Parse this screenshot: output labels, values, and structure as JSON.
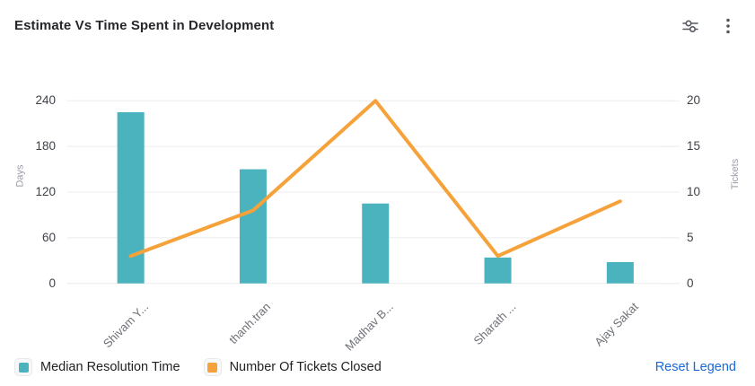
{
  "header": {
    "title": "Estimate Vs Time Spent in Development"
  },
  "chart_data": {
    "type": "combo",
    "categories": [
      "Shivam Y...",
      "thanh.tran",
      "Madhav B...",
      "Sharath ...",
      "Ajay Sakat"
    ],
    "series": [
      {
        "name": "Median Resolution Time",
        "type": "bar",
        "axis": "left",
        "color": "#4BB3BD",
        "values": [
          225,
          150,
          105,
          34,
          28
        ]
      },
      {
        "name": "Number Of Tickets Closed",
        "type": "line",
        "axis": "right",
        "color": "#F6A23B",
        "values": [
          3,
          8,
          20,
          3,
          9
        ]
      }
    ],
    "left_axis": {
      "label": "Days",
      "ticks": [
        0,
        60,
        120,
        180,
        240
      ],
      "range": [
        0,
        240
      ]
    },
    "right_axis": {
      "label": "Tickets",
      "ticks": [
        0,
        5,
        10,
        15,
        20
      ],
      "range": [
        0,
        20
      ]
    },
    "grid": true,
    "gridline_color": "#ececec",
    "legend_position": "bottom-left"
  },
  "legend": {
    "items": [
      {
        "label": "Median Resolution Time",
        "color": "#4BB3BD"
      },
      {
        "label": "Number Of Tickets Closed",
        "color": "#F6A23B"
      }
    ],
    "reset_label": "Reset Legend",
    "reset_color": "#1868DB"
  }
}
